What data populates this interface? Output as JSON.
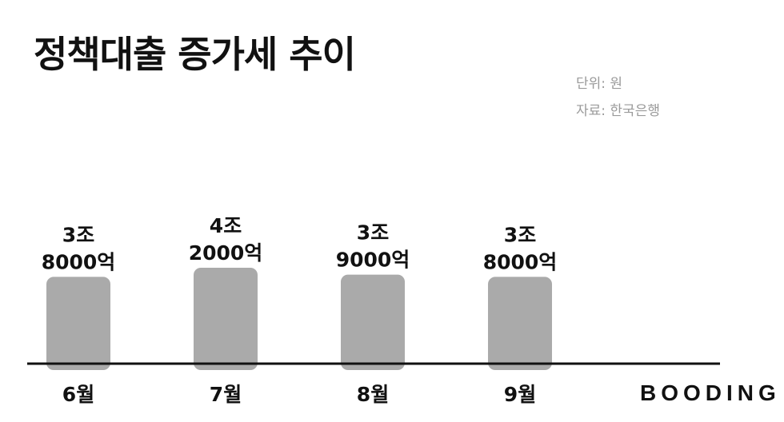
{
  "title": "정책대출 증가세 추이",
  "unit_label": "단위: 원",
  "source_label": "자료: 한국은행",
  "brand": "BOODING",
  "colors": {
    "bar": "#aaaaaa",
    "axis": "#111111",
    "text": "#111111",
    "meta": "#9a9a9a"
  },
  "chart_data": {
    "type": "bar",
    "categories": [
      "6월",
      "7월",
      "8월",
      "9월"
    ],
    "values": [
      38000,
      42000,
      39000,
      38000
    ],
    "value_unit": "억",
    "data_labels": [
      [
        "3조",
        "8000억"
      ],
      [
        "4조",
        "2000억"
      ],
      [
        "3조",
        "9000억"
      ],
      [
        "3조",
        "8000억"
      ]
    ],
    "title": "정책대출 증가세 추이",
    "xlabel": "",
    "ylabel": "",
    "grid": false,
    "legend": "none"
  }
}
